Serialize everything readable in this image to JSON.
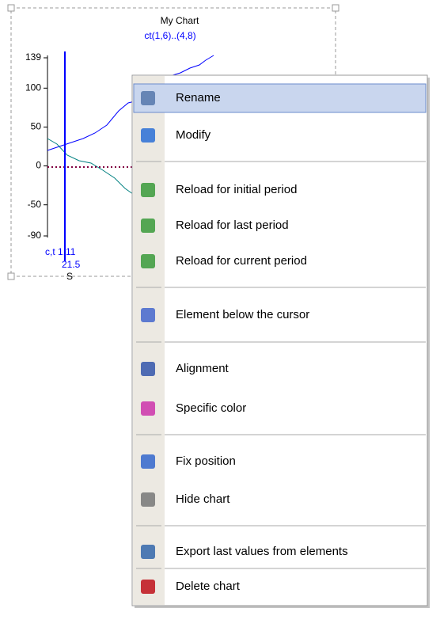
{
  "chart": {
    "title": "My Chart",
    "subtitle": "ct(1,6)..(4,8)",
    "yticks": [
      139,
      100,
      50,
      0,
      -50,
      -90
    ],
    "cursor_label": "c,t 1,11",
    "cursor_value": "21.5",
    "x_label": "S"
  },
  "menu": {
    "items": [
      "Rename",
      "Modify",
      "Reload for initial period",
      "Reload for last period",
      "Reload for current period",
      "Element below the cursor",
      "Alignment",
      "Specific color",
      "Fix position",
      "Hide chart",
      "Export last values from elements",
      "Delete chart"
    ]
  }
}
